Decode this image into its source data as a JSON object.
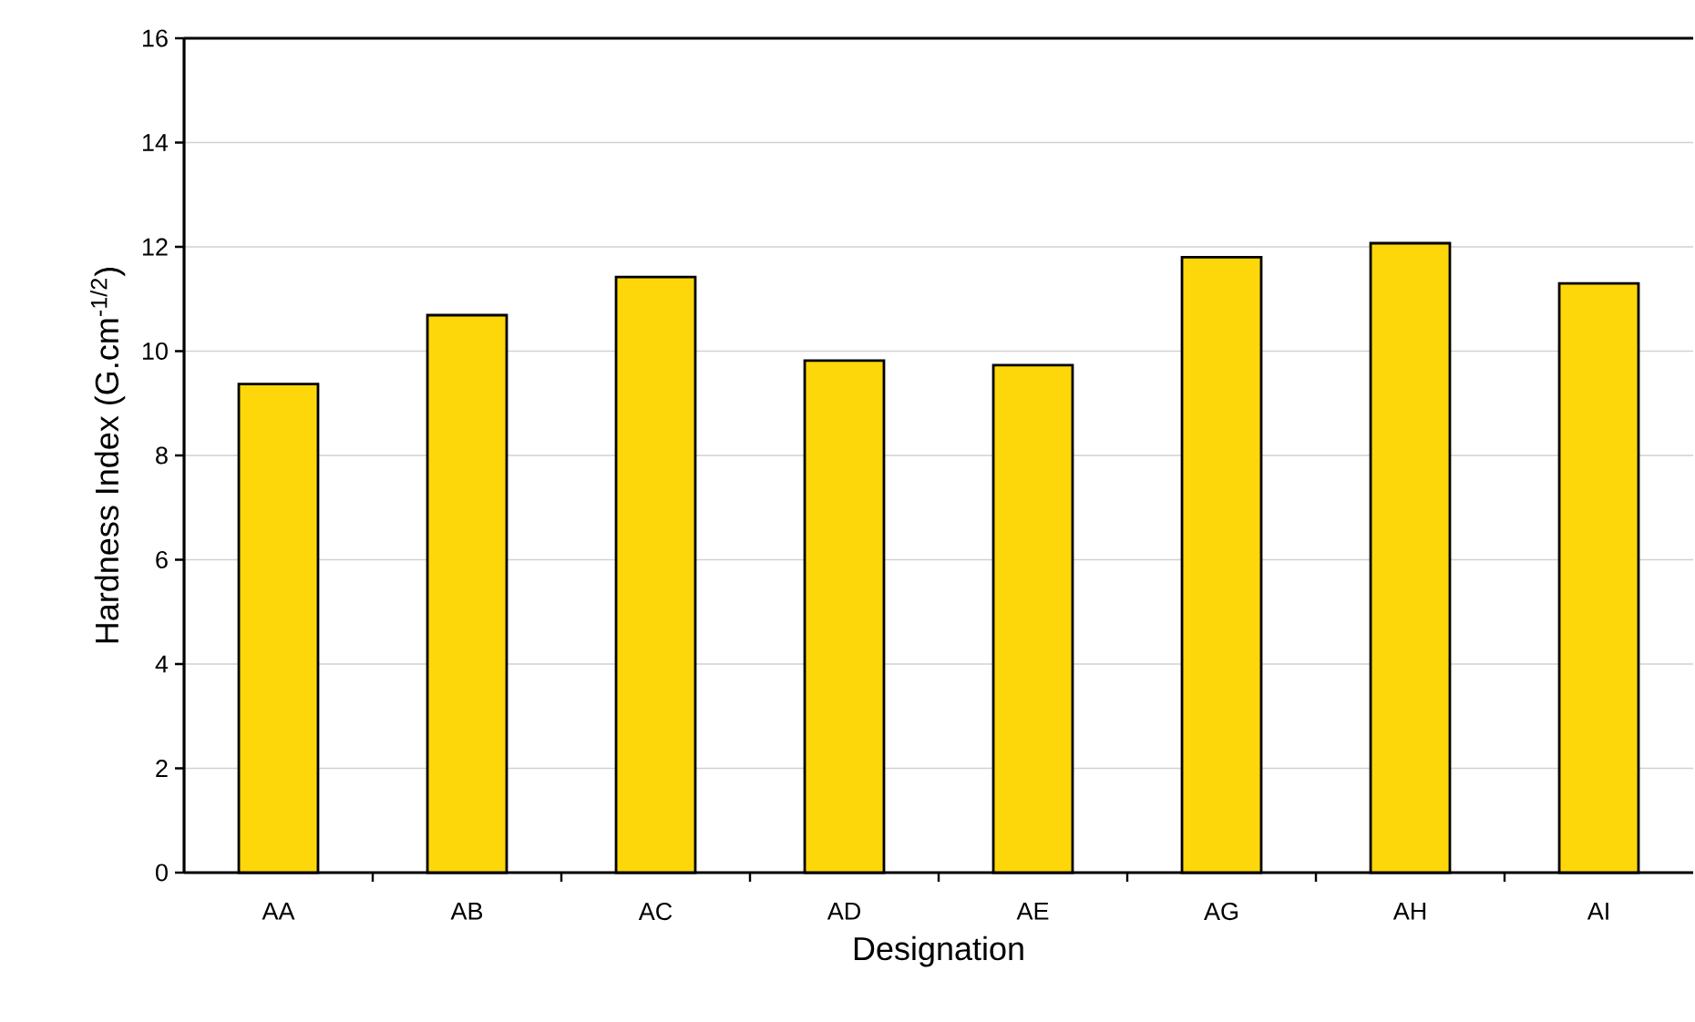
{
  "chart_data": {
    "type": "bar",
    "xlabel": "Designation",
    "ylabel": "Hardness Index (G.cm$^{-1/2}$)",
    "categories": [
      "AA",
      "AB",
      "AC",
      "AD",
      "AE",
      "AG",
      "AH",
      "AI"
    ],
    "values": [
      9.37,
      10.69,
      11.42,
      9.82,
      9.73,
      11.8,
      12.07,
      11.3
    ],
    "color": "#fdd70a",
    "ylim": [
      0,
      16
    ],
    "yticks": [
      0,
      2,
      4,
      6,
      8,
      10,
      12,
      14,
      16
    ],
    "grid": "y"
  }
}
